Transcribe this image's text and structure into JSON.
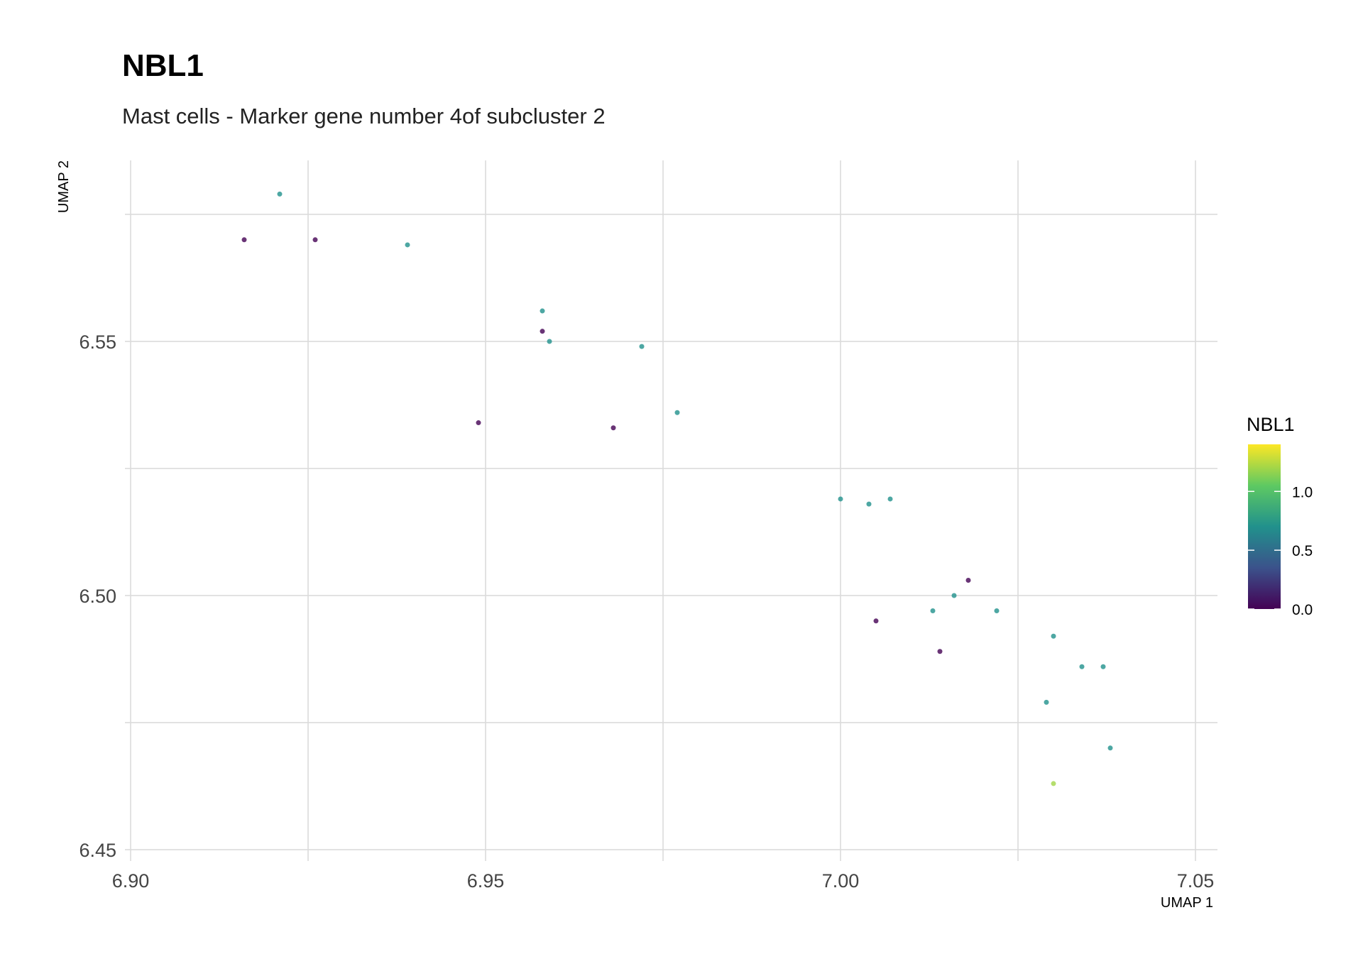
{
  "chart_data": {
    "type": "scatter",
    "title": "NBL1",
    "subtitle": "Mast cells - Marker gene number 4of subcluster 2",
    "xlabel": "UMAP 1",
    "ylabel": "UMAP 2",
    "xlim": [
      6.9,
      7.05
    ],
    "ylim": [
      6.45,
      6.575
    ],
    "x_ticks": [
      "6.90",
      "6.95",
      "7.00",
      "7.05"
    ],
    "y_ticks": [
      "6.45",
      "6.50",
      "6.55"
    ],
    "grid": true,
    "legend": {
      "title": "NBL1",
      "placement": "right",
      "colorscale": "viridis",
      "range": [
        0,
        1.4
      ],
      "ticks": [
        "0.0",
        "0.5",
        "1.0"
      ]
    },
    "points": [
      {
        "x": 6.921,
        "y": 6.579,
        "value": 0.7
      },
      {
        "x": 6.916,
        "y": 6.57,
        "value": 0.0
      },
      {
        "x": 6.926,
        "y": 6.57,
        "value": 0.0
      },
      {
        "x": 6.939,
        "y": 6.569,
        "value": 0.7
      },
      {
        "x": 6.958,
        "y": 6.556,
        "value": 0.7
      },
      {
        "x": 6.958,
        "y": 6.552,
        "value": 0.0
      },
      {
        "x": 6.959,
        "y": 6.55,
        "value": 0.7
      },
      {
        "x": 6.972,
        "y": 6.549,
        "value": 0.7
      },
      {
        "x": 6.949,
        "y": 6.534,
        "value": 0.0
      },
      {
        "x": 6.968,
        "y": 6.533,
        "value": 0.0
      },
      {
        "x": 6.977,
        "y": 6.536,
        "value": 0.7
      },
      {
        "x": 7.0,
        "y": 6.519,
        "value": 0.7
      },
      {
        "x": 7.004,
        "y": 6.518,
        "value": 0.7
      },
      {
        "x": 7.007,
        "y": 6.519,
        "value": 0.7
      },
      {
        "x": 7.018,
        "y": 6.503,
        "value": 0.0
      },
      {
        "x": 7.016,
        "y": 6.5,
        "value": 0.7
      },
      {
        "x": 7.013,
        "y": 6.497,
        "value": 0.7
      },
      {
        "x": 7.022,
        "y": 6.497,
        "value": 0.7
      },
      {
        "x": 7.005,
        "y": 6.495,
        "value": 0.0
      },
      {
        "x": 7.014,
        "y": 6.489,
        "value": 0.0
      },
      {
        "x": 7.03,
        "y": 6.492,
        "value": 0.7
      },
      {
        "x": 7.034,
        "y": 6.486,
        "value": 0.7
      },
      {
        "x": 7.037,
        "y": 6.486,
        "value": 0.7
      },
      {
        "x": 7.029,
        "y": 6.479,
        "value": 0.7
      },
      {
        "x": 7.038,
        "y": 6.47,
        "value": 0.7
      },
      {
        "x": 7.03,
        "y": 6.463,
        "value": 1.2
      }
    ]
  }
}
